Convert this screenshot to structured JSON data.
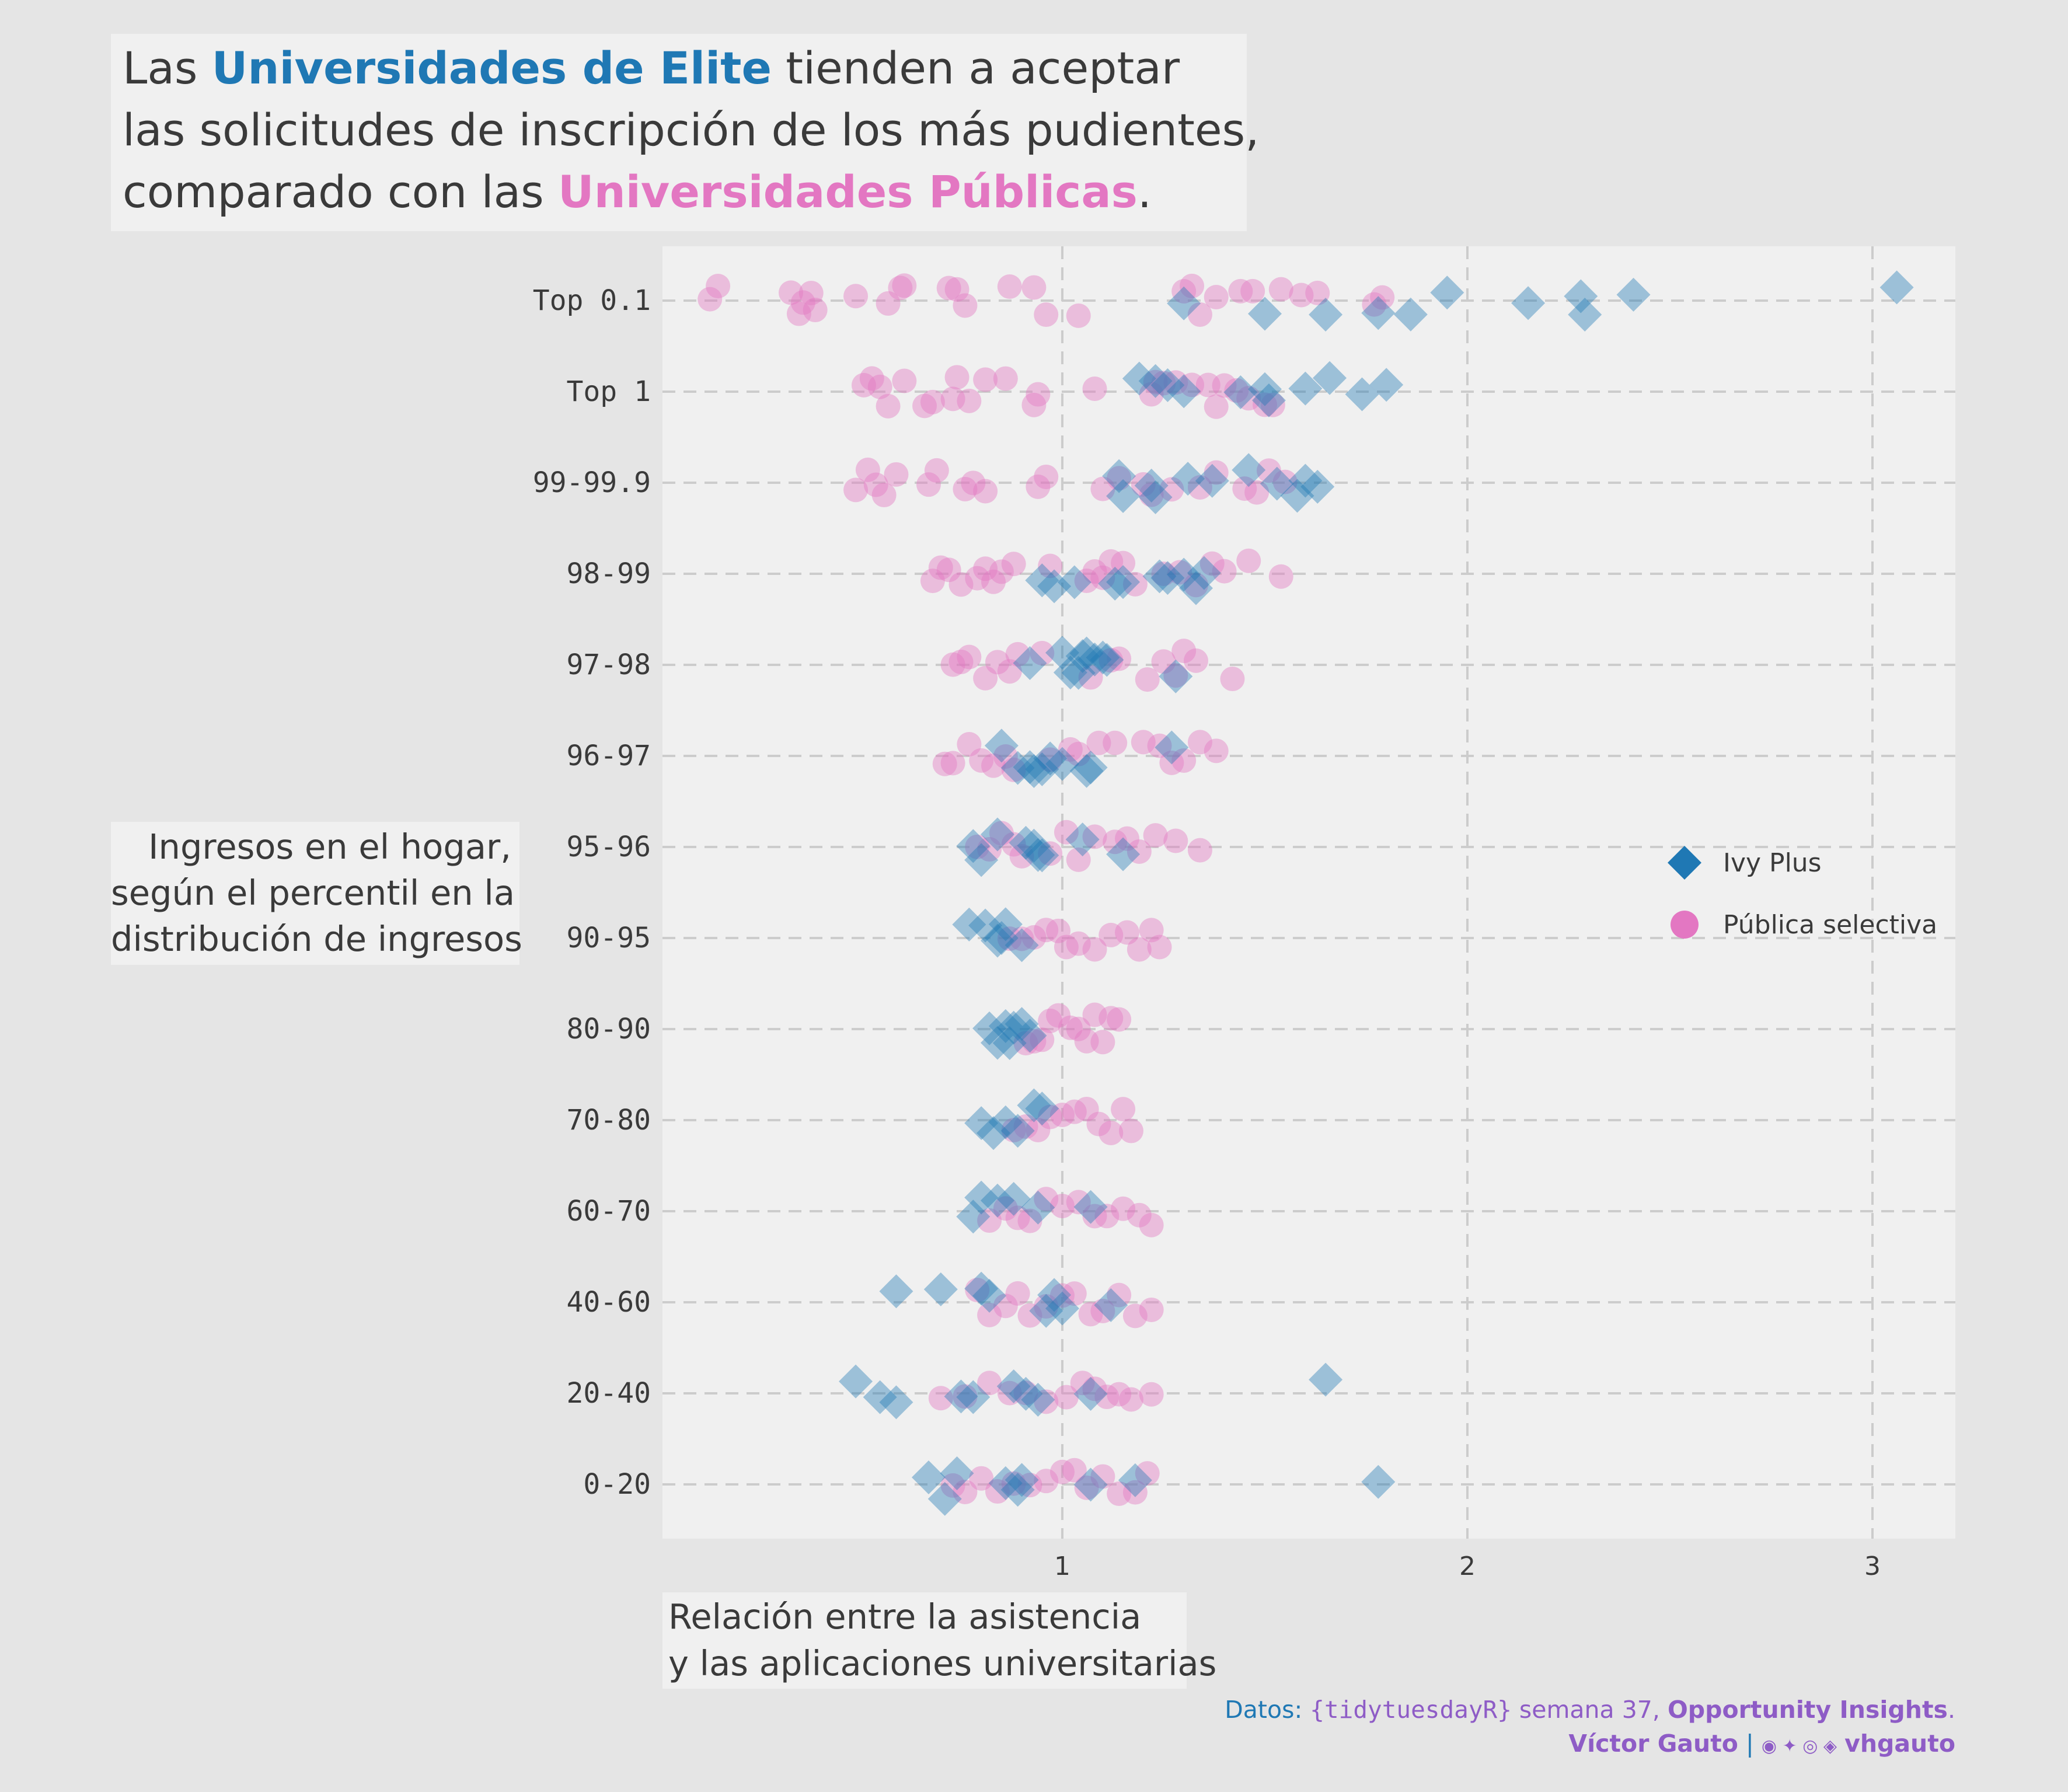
{
  "title": {
    "line1_pre": "Las ",
    "line1_elite": "Universidades de Elite",
    "line1_post": " tienden a aceptar",
    "line2": "las solicitudes de inscripción de los más pudientes,",
    "line3_pre": "comparado con las ",
    "line3_public": "Universidades Públicas",
    "line3_post": "."
  },
  "ylabel_lines": [
    "Ingresos en el hogar,",
    "según el percentil en la",
    "distribución de ingresos"
  ],
  "xlabel_lines": [
    "Relación entre la asistencia",
    "y las aplicaciones universitarias"
  ],
  "caption": {
    "datos": "Datos: ",
    "tidy": "{tidytuesdayR}",
    "semana": " semana 37, ",
    "source": "Opportunity Insights",
    "period": ".",
    "author": "Víctor Gauto",
    "sep": "|",
    "icons": "◉ ✦ ◎ ◈",
    "handle": "vhgauto"
  },
  "colors": {
    "ivy": "#1f78b4",
    "public": "#e377c2",
    "background": "#e5e5e5",
    "panel": "#f0f0f0",
    "grid": "#cccccc",
    "text": "#3a3a3a",
    "caption": "#8e5cc6"
  },
  "chart_data": {
    "type": "scatter",
    "xlim": [
      0.0,
      3.2
    ],
    "xticks": [
      1,
      2,
      3
    ],
    "categories": [
      "Top 0.1",
      "Top 1",
      "99-99.9",
      "98-99",
      "97-98",
      "96-97",
      "95-96",
      "90-95",
      "80-90",
      "70-80",
      "60-70",
      "40-60",
      "20-40",
      "0-20"
    ],
    "grid": "dashed",
    "legend_position": "right",
    "series": [
      {
        "name": "Ivy Plus",
        "marker": "diamond",
        "points": {
          "Top 0.1": [
            1.3,
            1.5,
            1.65,
            1.78,
            1.86,
            1.95,
            2.15,
            2.28,
            2.29,
            2.41,
            3.06
          ],
          "Top 1": [
            1.19,
            1.23,
            1.26,
            1.3,
            1.44,
            1.5,
            1.51,
            1.6,
            1.66,
            1.74,
            1.8
          ],
          "99-99.9": [
            1.14,
            1.15,
            1.22,
            1.23,
            1.31,
            1.37,
            1.46,
            1.53,
            1.58,
            1.6,
            1.63
          ],
          "98-99": [
            0.95,
            0.98,
            1.03,
            1.13,
            1.15,
            1.24,
            1.26,
            1.3,
            1.33,
            1.35
          ],
          "97-98": [
            0.92,
            1.0,
            1.02,
            1.04,
            1.05,
            1.06,
            1.08,
            1.1,
            1.11,
            1.28
          ],
          "96-97": [
            0.85,
            0.89,
            0.92,
            0.93,
            0.95,
            0.97,
            1.0,
            1.06,
            1.07,
            1.27
          ],
          "95-96": [
            0.78,
            0.8,
            0.84,
            0.91,
            0.93,
            0.94,
            0.95,
            1.05,
            1.15
          ],
          "90-95": [
            0.77,
            0.81,
            0.84,
            0.85,
            0.86,
            0.9
          ],
          "80-90": [
            0.82,
            0.84,
            0.86,
            0.87,
            0.88,
            0.9,
            0.92
          ],
          "70-80": [
            0.8,
            0.83,
            0.86,
            0.89,
            0.93,
            0.95
          ],
          "60-70": [
            0.78,
            0.8,
            0.84,
            0.88,
            0.94,
            1.07
          ],
          "40-60": [
            0.59,
            0.7,
            0.8,
            0.82,
            0.96,
            0.98,
            1.0,
            1.12
          ],
          "20-40": [
            0.49,
            0.55,
            0.59,
            0.75,
            0.78,
            0.88,
            0.91,
            0.94,
            1.07,
            1.65
          ],
          "0-20": [
            0.67,
            0.71,
            0.74,
            0.86,
            0.89,
            0.9,
            1.07,
            1.18,
            1.78
          ]
        }
      },
      {
        "name": "Pública selectiva",
        "marker": "circle",
        "points": {
          "Top 0.1": [
            0.13,
            0.15,
            0.33,
            0.35,
            0.36,
            0.38,
            0.39,
            0.49,
            0.57,
            0.6,
            0.61,
            0.72,
            0.74,
            0.76,
            0.87,
            0.93,
            0.96,
            1.04,
            1.3,
            1.32,
            1.34,
            1.38,
            1.44,
            1.47,
            1.54,
            1.59,
            1.63,
            1.77,
            1.79
          ],
          "Top 1": [
            0.51,
            0.53,
            0.55,
            0.57,
            0.61,
            0.66,
            0.68,
            0.73,
            0.74,
            0.77,
            0.81,
            0.86,
            0.93,
            0.94,
            1.08,
            1.22,
            1.23,
            1.25,
            1.28,
            1.32,
            1.36,
            1.38,
            1.4,
            1.43,
            1.46,
            1.5,
            1.52
          ],
          "99-99.9": [
            0.49,
            0.52,
            0.54,
            0.56,
            0.59,
            0.67,
            0.69,
            0.76,
            0.78,
            0.81,
            0.94,
            0.96,
            1.1,
            1.14,
            1.2,
            1.22,
            1.27,
            1.34,
            1.38,
            1.45,
            1.48,
            1.51,
            1.55
          ],
          "98-99": [
            0.68,
            0.7,
            0.72,
            0.75,
            0.79,
            0.81,
            0.83,
            0.85,
            0.88,
            0.97,
            1.06,
            1.08,
            1.1,
            1.12,
            1.15,
            1.18,
            1.25,
            1.29,
            1.33,
            1.37,
            1.4,
            1.46,
            1.54
          ],
          "97-98": [
            0.73,
            0.75,
            0.77,
            0.81,
            0.84,
            0.87,
            0.89,
            0.95,
            1.07,
            1.12,
            1.14,
            1.21,
            1.25,
            1.28,
            1.3,
            1.33,
            1.42
          ],
          "96-97": [
            0.71,
            0.73,
            0.77,
            0.8,
            0.83,
            0.86,
            0.88,
            0.97,
            1.02,
            1.04,
            1.09,
            1.13,
            1.2,
            1.24,
            1.27,
            1.3,
            1.34,
            1.38
          ],
          "95-96": [
            0.79,
            0.82,
            0.85,
            0.88,
            0.9,
            0.97,
            1.01,
            1.04,
            1.08,
            1.13,
            1.16,
            1.19,
            1.23,
            1.28,
            1.34
          ],
          "90-95": [
            0.87,
            0.9,
            0.93,
            0.96,
            0.99,
            1.01,
            1.04,
            1.08,
            1.12,
            1.16,
            1.19,
            1.22,
            1.24
          ],
          "80-90": [
            0.91,
            0.93,
            0.95,
            0.97,
            0.99,
            1.02,
            1.04,
            1.06,
            1.08,
            1.1,
            1.12,
            1.14
          ],
          "70-80": [
            0.88,
            0.91,
            0.94,
            0.97,
            1.0,
            1.03,
            1.06,
            1.09,
            1.12,
            1.15,
            1.17
          ],
          "60-70": [
            0.82,
            0.86,
            0.89,
            0.92,
            0.96,
            1.0,
            1.04,
            1.08,
            1.11,
            1.15,
            1.19,
            1.22
          ],
          "40-60": [
            0.79,
            0.82,
            0.86,
            0.89,
            0.92,
            0.96,
            1.0,
            1.03,
            1.07,
            1.1,
            1.14,
            1.18,
            1.22
          ],
          "20-40": [
            0.7,
            0.76,
            0.82,
            0.87,
            0.91,
            0.96,
            1.01,
            1.05,
            1.08,
            1.11,
            1.14,
            1.17,
            1.22
          ],
          "0-20": [
            0.73,
            0.76,
            0.8,
            0.84,
            0.88,
            0.92,
            0.96,
            1.0,
            1.03,
            1.06,
            1.1,
            1.14,
            1.18,
            1.21
          ]
        }
      }
    ]
  }
}
